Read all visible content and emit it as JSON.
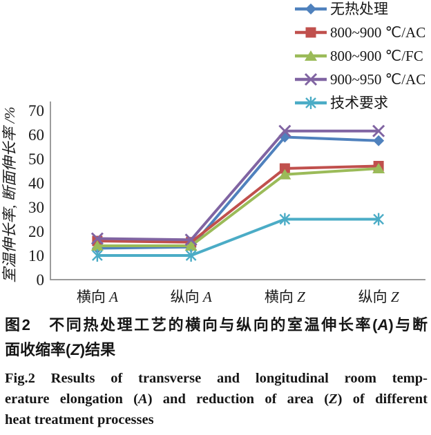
{
  "chart_data": {
    "type": "line",
    "title": "",
    "xlabel": "",
    "ylabel": "室温伸长率, 断面伸长率 /%",
    "ylim": [
      0,
      70
    ],
    "yticks": [
      0,
      10,
      20,
      30,
      40,
      50,
      60,
      70
    ],
    "grid": false,
    "legend_position": "top-right",
    "categories": [
      "横向 A",
      "纵向 A",
      "横向 Z",
      "纵向 Z"
    ],
    "series": [
      {
        "name": "无热处理",
        "color": "#4F81BD",
        "marker": "diamond",
        "values": [
          13,
          13.5,
          59,
          57.5
        ]
      },
      {
        "name": "800~900 ℃/AC",
        "color": "#C0504D",
        "marker": "square",
        "values": [
          16,
          15.5,
          46,
          47
        ]
      },
      {
        "name": "800~900 ℃/FC",
        "color": "#9BBB59",
        "marker": "triangle",
        "values": [
          14,
          14,
          43.5,
          46
        ]
      },
      {
        "name": "900~950 ℃/AC",
        "color": "#8064A2",
        "marker": "x",
        "values": [
          17,
          16.5,
          61.5,
          61.5
        ]
      },
      {
        "name": "技术要求",
        "color": "#4BACC6",
        "marker": "asterisk",
        "values": [
          10,
          10,
          25,
          25
        ]
      }
    ],
    "axis_color": "#8c8c8c"
  },
  "captions": {
    "zh_lines": [
      [
        "图2　不同热处理工艺的横向与纵向的室温伸长率(",
        "A",
        ")与断"
      ],
      [
        "面收缩率(",
        "Z",
        ")结果"
      ]
    ],
    "en_lines": [
      [
        "Fig.2   Results of transverse and longitudinal room temp-"
      ],
      [
        "erature elongation (",
        "A",
        ") and reduction of area (",
        "Z",
        ") of different"
      ],
      [
        "heat treatment processes"
      ]
    ]
  }
}
